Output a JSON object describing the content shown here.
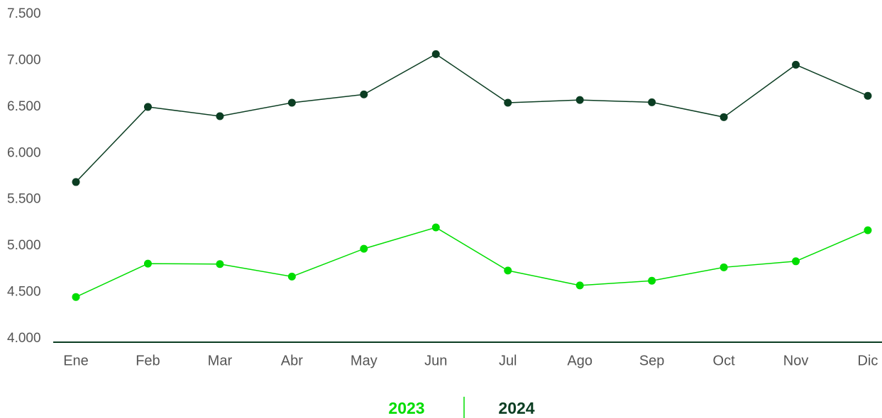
{
  "chart_data": {
    "type": "line",
    "categories": [
      "Ene",
      "Feb",
      "Mar",
      "Abr",
      "May",
      "Jun",
      "Jul",
      "Ago",
      "Sep",
      "Oct",
      "Nov",
      "Dic"
    ],
    "series": [
      {
        "name": "2023",
        "color": "#00dd00",
        "values": [
          4480,
          4840,
          4835,
          4700,
          5000,
          5230,
          4765,
          4605,
          4655,
          4800,
          4865,
          5200
        ]
      },
      {
        "name": "2024",
        "color": "#0b3d22",
        "values": [
          5720,
          6530,
          6430,
          6575,
          6665,
          7100,
          6575,
          6605,
          6580,
          6420,
          6985,
          6650
        ]
      }
    ],
    "ylim": [
      4000,
      7500
    ],
    "yticks": [
      {
        "value": 4000,
        "label": "4.000"
      },
      {
        "value": 4500,
        "label": "4.500"
      },
      {
        "value": 5000,
        "label": "5.000"
      },
      {
        "value": 5500,
        "label": "5.500"
      },
      {
        "value": 6000,
        "label": "6.000"
      },
      {
        "value": 6500,
        "label": "6.500"
      },
      {
        "value": 7000,
        "label": "7.000"
      },
      {
        "value": 7500,
        "label": "7.500"
      }
    ],
    "grid": false,
    "legend": "bottom"
  }
}
